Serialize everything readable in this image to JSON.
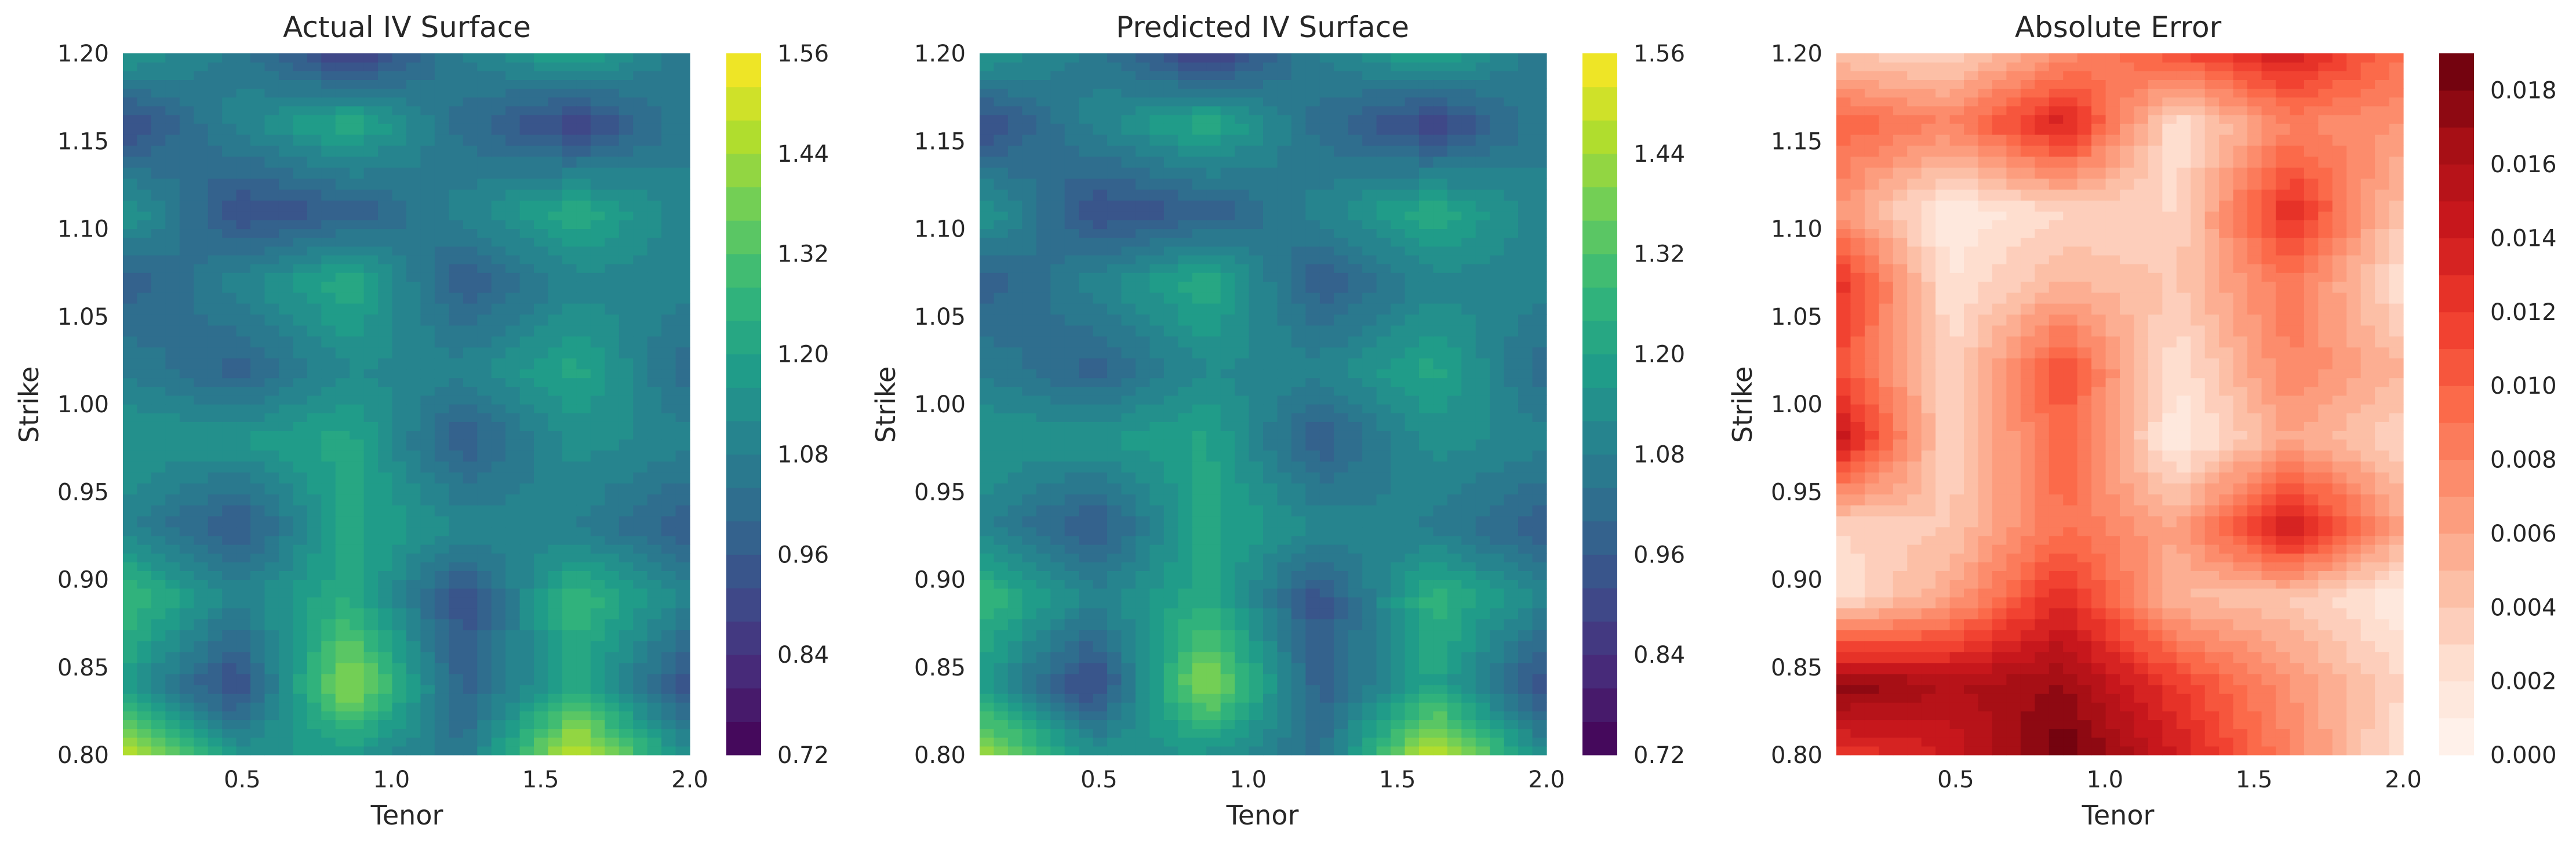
{
  "chart_data": [
    {
      "type": "heatmap",
      "variant": "filled-contour",
      "title": "Actual IV Surface",
      "xlabel": "Tenor",
      "ylabel": "Strike",
      "colormap": "viridis",
      "xlim": [
        0.1,
        2.0
      ],
      "ylim": [
        0.8,
        1.2
      ],
      "x_ticks": [
        0.5,
        1.0,
        1.5,
        2.0
      ],
      "x_tick_labels": [
        "0.5",
        "1.0",
        "1.5",
        "2.0"
      ],
      "y_ticks": [
        0.8,
        0.85,
        0.9,
        0.95,
        1.0,
        1.05,
        1.1,
        1.15,
        1.2
      ],
      "y_tick_labels": [
        "0.80",
        "0.85",
        "0.90",
        "0.95",
        "1.00",
        "1.05",
        "1.10",
        "1.15",
        "1.20"
      ],
      "colorbar": {
        "min": 0.72,
        "max": 1.56,
        "levels": 21,
        "ticks": [
          0.72,
          0.84,
          0.96,
          1.08,
          1.2,
          1.32,
          1.44,
          1.56
        ],
        "tick_labels": [
          "0.72",
          "0.84",
          "0.96",
          "1.08",
          "1.20",
          "1.32",
          "1.44",
          "1.56"
        ]
      },
      "grid_x": [
        0.1,
        0.48,
        0.86,
        1.24,
        1.62,
        2.0
      ],
      "grid_y": [
        0.8,
        0.84,
        0.89,
        0.93,
        0.98,
        1.02,
        1.07,
        1.11,
        1.16,
        1.2
      ],
      "grid_z": [
        [
          1.48,
          1.16,
          1.16,
          1.04,
          1.52,
          1.12
        ],
        [
          1.18,
          0.9,
          1.44,
          0.98,
          1.22,
          0.92
        ],
        [
          1.3,
          1.1,
          1.24,
          0.92,
          1.28,
          1.1
        ],
        [
          1.1,
          0.94,
          1.22,
          1.12,
          1.08,
          0.96
        ],
        [
          1.16,
          1.16,
          1.22,
          0.96,
          1.14,
          1.1
        ],
        [
          1.08,
          0.98,
          1.12,
          1.1,
          1.22,
          1.0
        ],
        [
          0.96,
          1.1,
          1.24,
          0.96,
          1.1,
          1.1
        ],
        [
          1.18,
          0.92,
          0.96,
          1.1,
          1.24,
          1.08
        ],
        [
          0.9,
          1.1,
          1.24,
          1.02,
          0.88,
          1.08
        ],
        [
          1.18,
          1.06,
          0.86,
          1.08,
          1.22,
          1.04
        ]
      ]
    },
    {
      "type": "heatmap",
      "variant": "filled-contour",
      "title": "Predicted IV Surface",
      "xlabel": "Tenor",
      "ylabel": "Strike",
      "colormap": "viridis",
      "xlim": [
        0.1,
        2.0
      ],
      "ylim": [
        0.8,
        1.2
      ],
      "x_ticks": [
        0.5,
        1.0,
        1.5,
        2.0
      ],
      "x_tick_labels": [
        "0.5",
        "1.0",
        "1.5",
        "2.0"
      ],
      "y_ticks": [
        0.8,
        0.85,
        0.9,
        0.95,
        1.0,
        1.05,
        1.1,
        1.15,
        1.2
      ],
      "y_tick_labels": [
        "0.80",
        "0.85",
        "0.90",
        "0.95",
        "1.00",
        "1.05",
        "1.10",
        "1.15",
        "1.20"
      ],
      "colorbar": {
        "min": 0.72,
        "max": 1.56,
        "levels": 21,
        "ticks": [
          0.72,
          0.84,
          0.96,
          1.08,
          1.2,
          1.32,
          1.44,
          1.56
        ],
        "tick_labels": [
          "0.72",
          "0.84",
          "0.96",
          "1.08",
          "1.20",
          "1.32",
          "1.44",
          "1.56"
        ]
      },
      "grid_x": [
        0.1,
        0.48,
        0.86,
        1.24,
        1.62,
        2.0
      ],
      "grid_y": [
        0.8,
        0.84,
        0.89,
        0.93,
        0.98,
        1.02,
        1.07,
        1.11,
        1.16,
        1.2
      ],
      "grid_z": [
        [
          1.47,
          1.15,
          1.15,
          1.03,
          1.51,
          1.12
        ],
        [
          1.17,
          0.89,
          1.43,
          0.97,
          1.21,
          0.91
        ],
        [
          1.29,
          1.1,
          1.23,
          0.93,
          1.27,
          1.1
        ],
        [
          1.1,
          0.94,
          1.22,
          1.12,
          1.07,
          0.96
        ],
        [
          1.16,
          1.16,
          1.21,
          0.96,
          1.14,
          1.1
        ],
        [
          1.08,
          0.98,
          1.12,
          1.1,
          1.22,
          1.0
        ],
        [
          0.96,
          1.1,
          1.24,
          0.96,
          1.1,
          1.1
        ],
        [
          1.18,
          0.92,
          0.96,
          1.1,
          1.24,
          1.08
        ],
        [
          0.9,
          1.1,
          1.24,
          1.02,
          0.88,
          1.08
        ],
        [
          1.18,
          1.06,
          0.86,
          1.08,
          1.22,
          1.04
        ]
      ]
    },
    {
      "type": "heatmap",
      "variant": "filled-contour",
      "title": "Absolute Error",
      "xlabel": "Tenor",
      "ylabel": "Strike",
      "colormap": "reds",
      "xlim": [
        0.1,
        2.0
      ],
      "ylim": [
        0.8,
        1.2
      ],
      "x_ticks": [
        0.5,
        1.0,
        1.5,
        2.0
      ],
      "x_tick_labels": [
        "0.5",
        "1.0",
        "1.5",
        "2.0"
      ],
      "y_ticks": [
        0.8,
        0.85,
        0.9,
        0.95,
        1.0,
        1.05,
        1.1,
        1.15,
        1.2
      ],
      "y_tick_labels": [
        "0.80",
        "0.85",
        "0.90",
        "0.95",
        "1.00",
        "1.05",
        "1.10",
        "1.15",
        "1.20"
      ],
      "colorbar": {
        "min": 0.0,
        "max": 0.019,
        "levels": 19,
        "ticks": [
          0.0,
          0.002,
          0.004,
          0.006,
          0.008,
          0.01,
          0.012,
          0.014,
          0.016,
          0.018
        ],
        "tick_labels": [
          "0.000",
          "0.002",
          "0.004",
          "0.006",
          "0.008",
          "0.010",
          "0.012",
          "0.014",
          "0.016",
          "0.018"
        ]
      },
      "grid_x": [
        0.1,
        0.48,
        0.86,
        1.24,
        1.62,
        2.0
      ],
      "grid_y": [
        0.8,
        0.84,
        0.89,
        0.93,
        0.98,
        1.02,
        1.07,
        1.11,
        1.16,
        1.2
      ],
      "grid_z": [
        [
          0.012,
          0.014,
          0.019,
          0.014,
          0.008,
          0.002
        ],
        [
          0.018,
          0.016,
          0.017,
          0.012,
          0.007,
          0.003
        ],
        [
          0.002,
          0.006,
          0.013,
          0.005,
          0.004,
          0.001
        ],
        [
          0.003,
          0.004,
          0.009,
          0.006,
          0.015,
          0.006
        ],
        [
          0.015,
          0.003,
          0.01,
          0.001,
          0.006,
          0.003
        ],
        [
          0.011,
          0.003,
          0.011,
          0.002,
          0.008,
          0.005
        ],
        [
          0.013,
          0.002,
          0.005,
          0.004,
          0.009,
          0.002
        ],
        [
          0.007,
          0.001,
          0.003,
          0.003,
          0.013,
          0.004
        ],
        [
          0.01,
          0.008,
          0.014,
          0.002,
          0.008,
          0.007
        ],
        [
          0.004,
          0.003,
          0.007,
          0.011,
          0.014,
          0.009
        ]
      ]
    }
  ]
}
